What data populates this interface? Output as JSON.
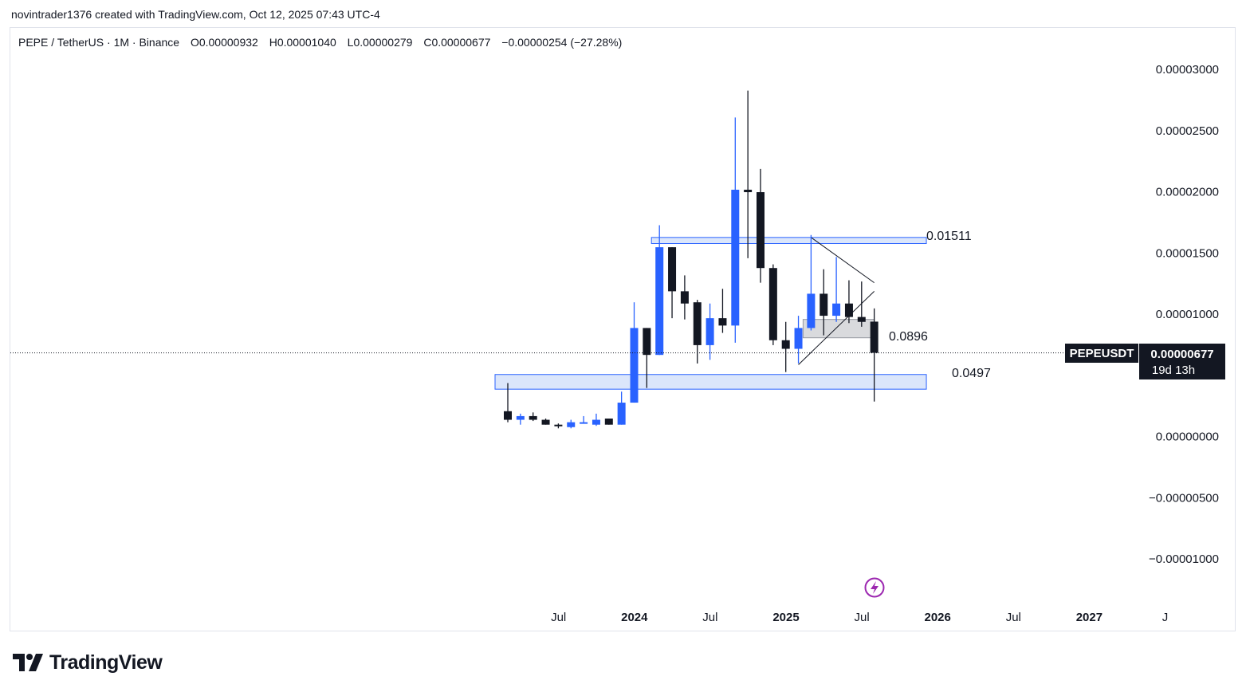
{
  "header": {
    "attribution": "novintrader1376 created with TradingView.com, Oct 12, 2025 07:43 UTC-4"
  },
  "legend": {
    "symbol": "PEPE / TetherUS · 1M · Binance",
    "open": "O0.00000932",
    "high": "H0.00001040",
    "low": "L0.00000279",
    "close": "C0.00000677",
    "change": "−0.00000254 (−27.28%)"
  },
  "price_tag": {
    "ticker": "PEPEUSDT",
    "price": "0.00000677",
    "countdown": "19d 13h"
  },
  "zone_labels": [
    "0.01511",
    "0.0896",
    "0.0497"
  ],
  "footer": {
    "brand": "TradingView"
  },
  "colors": {
    "up": "#2962ff",
    "down": "#131722",
    "zone_fill": "#dbe6fb",
    "zone_border": "#2962ff",
    "gray_zone": "#d9dadd",
    "lightning": "#9c27b0"
  },
  "chart_data": {
    "type": "candlestick",
    "title": "PEPE / TetherUS · 1M · Binance",
    "timeframe": "1M",
    "ylim": [
      -1.15e-05,
      3.25e-05
    ],
    "yticks": [
      3e-05,
      2.5e-05,
      2e-05,
      1.5e-05,
      1e-05,
      0.0,
      -5e-06,
      -1e-05
    ],
    "ytick_labels": [
      "0.00003000",
      "0.00002500",
      "0.00002000",
      "0.00001500",
      "0.00001000",
      "0.00000000",
      "−0.00000500",
      "−0.00001000"
    ],
    "x_tick_labels": [
      {
        "label": "Jul",
        "index": 2,
        "major": false
      },
      {
        "label": "2024",
        "index": 8,
        "major": true
      },
      {
        "label": "Jul",
        "index": 14,
        "major": false
      },
      {
        "label": "2025",
        "index": 20,
        "major": true
      },
      {
        "label": "Jul",
        "index": 26,
        "major": false
      },
      {
        "label": "2026",
        "index": 32,
        "major": true
      },
      {
        "label": "Jul",
        "index": 38,
        "major": false
      },
      {
        "label": "2027",
        "index": 44,
        "major": true
      },
      {
        "label": "J",
        "index": 50,
        "major": false
      }
    ],
    "candles": [
      {
        "month": "2023-05",
        "o": 2e-06,
        "h": 4.3e-06,
        "l": 1.1e-06,
        "c": 1.3e-06
      },
      {
        "month": "2023-06",
        "o": 1.3e-06,
        "h": 1.8e-06,
        "l": 9e-07,
        "c": 1.6e-06
      },
      {
        "month": "2023-07",
        "o": 1.6e-06,
        "h": 1.9e-06,
        "l": 1.2e-06,
        "c": 1.3e-06
      },
      {
        "month": "2023-08",
        "o": 1.3e-06,
        "h": 1.4e-06,
        "l": 9e-07,
        "c": 9e-07
      },
      {
        "month": "2023-09",
        "o": 9e-07,
        "h": 1e-06,
        "l": 6e-07,
        "c": 8e-07
      },
      {
        "month": "2023-10",
        "o": 7e-07,
        "h": 1.3e-06,
        "l": 6e-07,
        "c": 1.1e-06
      },
      {
        "month": "2023-11",
        "o": 1.1e-06,
        "h": 1.6e-06,
        "l": 1e-06,
        "c": 1.1e-06
      },
      {
        "month": "2023-12",
        "o": 9e-07,
        "h": 1.8e-06,
        "l": 8e-07,
        "c": 1.3e-06
      },
      {
        "month": "2024-01",
        "o": 1.4e-06,
        "h": 1.4e-06,
        "l": 9e-07,
        "c": 9e-07
      },
      {
        "month": "2024-02",
        "o": 9e-07,
        "h": 3.6e-06,
        "l": 9e-07,
        "c": 2.7e-06
      },
      {
        "month": "2024-03",
        "o": 2.7e-06,
        "h": 1.09e-05,
        "l": 2.7e-06,
        "c": 8.8e-06
      },
      {
        "month": "2024-04",
        "o": 8.8e-06,
        "h": 8.8e-06,
        "l": 3.9e-06,
        "c": 6.6e-06
      },
      {
        "month": "2024-05",
        "o": 6.6e-06,
        "h": 1.72e-05,
        "l": 6.6e-06,
        "c": 1.54e-05
      },
      {
        "month": "2024-06",
        "o": 1.54e-05,
        "h": 1.54e-05,
        "l": 9.6e-06,
        "c": 1.18e-05
      },
      {
        "month": "2024-07",
        "o": 1.18e-05,
        "h": 1.31e-05,
        "l": 9.5e-06,
        "c": 1.08e-05
      },
      {
        "month": "2024-08",
        "o": 1.09e-05,
        "h": 1.11e-05,
        "l": 5.9e-06,
        "c": 7.4e-06
      },
      {
        "month": "2024-09",
        "o": 7.4e-06,
        "h": 1.08e-05,
        "l": 6.2e-06,
        "c": 9.6e-06
      },
      {
        "month": "2024-10",
        "o": 9.6e-06,
        "h": 1.2e-05,
        "l": 8.4e-06,
        "c": 9e-06
      },
      {
        "month": "2024-11",
        "o": 9e-06,
        "h": 2.6e-05,
        "l": 7.6e-06,
        "c": 2.01e-05
      },
      {
        "month": "2024-12",
        "o": 2.01e-05,
        "h": 2.82e-05,
        "l": 1.45e-05,
        "c": 1.99e-05
      },
      {
        "month": "2025-01",
        "o": 1.99e-05,
        "h": 2.18e-05,
        "l": 1.25e-05,
        "c": 1.37e-05
      },
      {
        "month": "2025-02",
        "o": 1.37e-05,
        "h": 1.4e-05,
        "l": 7.4e-06,
        "c": 7.8e-06
      },
      {
        "month": "2025-03",
        "o": 7.8e-06,
        "h": 9.3e-06,
        "l": 5.2e-06,
        "c": 7.1e-06
      },
      {
        "month": "2025-04",
        "o": 7.1e-06,
        "h": 9.8e-06,
        "l": 5.9e-06,
        "c": 8.8e-06
      },
      {
        "month": "2025-05",
        "o": 8.8e-06,
        "h": 1.64e-05,
        "l": 8.6e-06,
        "c": 1.16e-05
      },
      {
        "month": "2025-06",
        "o": 1.16e-05,
        "h": 1.36e-05,
        "l": 8.2e-06,
        "c": 9.8e-06
      },
      {
        "month": "2025-07",
        "o": 9.8e-06,
        "h": 1.46e-05,
        "l": 9.3e-06,
        "c": 1.08e-05
      },
      {
        "month": "2025-08",
        "o": 1.08e-05,
        "h": 1.27e-05,
        "l": 9.2e-06,
        "c": 9.7e-06
      },
      {
        "month": "2025-09",
        "o": 9.7e-06,
        "h": 1.26e-05,
        "l": 8.9e-06,
        "c": 9.3e-06
      },
      {
        "month": "2025-10",
        "o": 9.32e-06,
        "h": 1.04e-05,
        "l": 2.79e-06,
        "c": 6.77e-06
      }
    ],
    "zones": [
      {
        "label": "0.01511",
        "from_index": 12,
        "to_index": 33,
        "top": 1.62e-05,
        "bottom": 1.57e-05,
        "style": "blue"
      },
      {
        "label": "0.0896",
        "from_index": 24,
        "to_index": 29,
        "top": 9.5e-06,
        "bottom": 8e-06,
        "style": "gray"
      },
      {
        "label": "0.0497",
        "from_index": 0,
        "to_index": 33,
        "top": 5e-06,
        "bottom": 3.8e-06,
        "style": "blue"
      }
    ],
    "trendlines": [
      {
        "from": [
          24,
          1.62e-05
        ],
        "to": [
          29,
          1.25e-05
        ]
      },
      {
        "from": [
          23,
          5.8e-06
        ],
        "to": [
          29,
          1.18e-05
        ]
      }
    ],
    "current_price": 6.77e-06
  }
}
